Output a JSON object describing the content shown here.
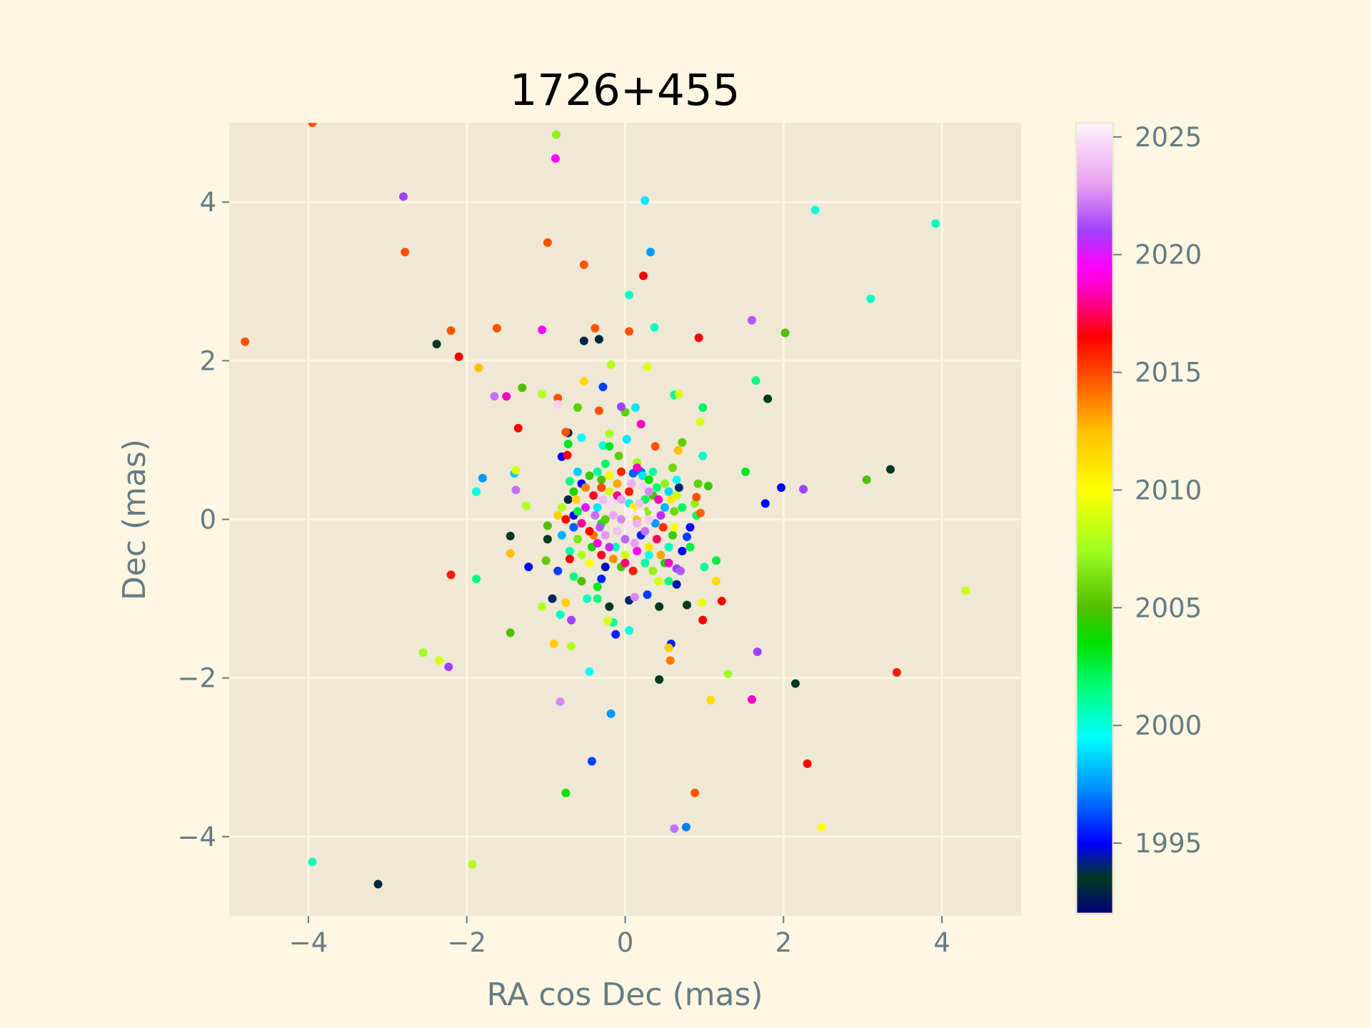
{
  "chart_data": {
    "type": "scatter",
    "title": "1726+455",
    "xlabel": "RA cos Dec (mas)",
    "ylabel": "Dec (mas)",
    "xlim": [
      -5,
      5
    ],
    "ylim": [
      -5,
      5
    ],
    "xticks": [
      -4,
      -2,
      0,
      2,
      4
    ],
    "yticks": [
      -4,
      -2,
      0,
      2,
      4
    ],
    "grid": true,
    "colorbar": {
      "label": "",
      "range": [
        1992.0,
        2025.6
      ],
      "ticks": [
        1995,
        2000,
        2005,
        2010,
        2015,
        2020,
        2025
      ],
      "colormap": "gist_ncar-like",
      "stops": [
        {
          "value": 1992.0,
          "color": "#000080"
        },
        {
          "value": 1993.5,
          "color": "#003a20"
        },
        {
          "value": 1995.0,
          "color": "#0000ff"
        },
        {
          "value": 1997.3,
          "color": "#0090ff"
        },
        {
          "value": 1999.5,
          "color": "#00ffff"
        },
        {
          "value": 2001.5,
          "color": "#00ff80"
        },
        {
          "value": 2003.5,
          "color": "#00e000"
        },
        {
          "value": 2005.0,
          "color": "#50c000"
        },
        {
          "value": 2007.5,
          "color": "#a0ff20"
        },
        {
          "value": 2010.0,
          "color": "#ffff00"
        },
        {
          "value": 2012.5,
          "color": "#ffc000"
        },
        {
          "value": 2014.5,
          "color": "#ff6000"
        },
        {
          "value": 2016.5,
          "color": "#ff0000"
        },
        {
          "value": 2018.5,
          "color": "#ff00c0"
        },
        {
          "value": 2019.5,
          "color": "#ff00ff"
        },
        {
          "value": 2021.0,
          "color": "#a040ff"
        },
        {
          "value": 2023.0,
          "color": "#e8a0f0"
        },
        {
          "value": 2025.6,
          "color": "#fff4fc"
        }
      ]
    },
    "points": [
      [
        -3.95,
        5.0,
        2014.8
      ],
      [
        -0.87,
        4.85,
        2007.0
      ],
      [
        -0.88,
        4.55,
        2019.5
      ],
      [
        -2.8,
        4.07,
        2021.0
      ],
      [
        0.25,
        4.02,
        1999.0
      ],
      [
        2.4,
        3.9,
        2000.0
      ],
      [
        3.92,
        3.73,
        2000.5
      ],
      [
        -2.78,
        3.37,
        2014.8
      ],
      [
        -0.98,
        3.49,
        2014.8
      ],
      [
        -0.52,
        3.21,
        2014.8
      ],
      [
        0.32,
        3.37,
        1997.5
      ],
      [
        0.23,
        3.07,
        2016.5
      ],
      [
        0.05,
        2.83,
        2000.5
      ],
      [
        3.1,
        2.78,
        2000.5
      ],
      [
        -4.8,
        2.24,
        2014.8
      ],
      [
        -2.38,
        2.21,
        1993.5
      ],
      [
        -2.2,
        2.38,
        2014.8
      ],
      [
        -1.62,
        2.41,
        2014.8
      ],
      [
        -1.05,
        2.39,
        2019.5
      ],
      [
        -0.52,
        2.25,
        1993.0
      ],
      [
        -0.33,
        2.27,
        1993.0
      ],
      [
        -0.38,
        2.41,
        2014.8
      ],
      [
        0.05,
        2.37,
        2014.8
      ],
      [
        0.37,
        2.42,
        2000.5
      ],
      [
        0.93,
        2.29,
        2016.5
      ],
      [
        1.6,
        2.51,
        2021.5
      ],
      [
        2.02,
        2.35,
        2005.0
      ],
      [
        -2.1,
        2.05,
        2016.5
      ],
      [
        -1.85,
        1.91,
        2012.5
      ],
      [
        -1.3,
        1.66,
        2005.0
      ],
      [
        -1.05,
        1.58,
        2008.0
      ],
      [
        -1.65,
        1.55,
        2022.0
      ],
      [
        -1.5,
        1.55,
        2018.5
      ],
      [
        -0.85,
        1.53,
        2014.8
      ],
      [
        -0.85,
        1.45,
        2024.5
      ],
      [
        -0.52,
        1.74,
        2011.5
      ],
      [
        -0.28,
        1.67,
        1996.0
      ],
      [
        -0.18,
        1.95,
        2008.0
      ],
      [
        0.28,
        1.92,
        2009.0
      ],
      [
        0.62,
        1.57,
        2001.5
      ],
      [
        0.68,
        1.58,
        2009.0
      ],
      [
        1.65,
        1.75,
        2001.5
      ],
      [
        1.8,
        1.52,
        1993.5
      ],
      [
        -0.6,
        1.41,
        2005.5
      ],
      [
        -0.33,
        1.37,
        2014.8
      ],
      [
        -0.05,
        1.42,
        2021.0
      ],
      [
        0.0,
        1.35,
        2005.5
      ],
      [
        0.13,
        1.41,
        1999.0
      ],
      [
        0.2,
        1.2,
        2018.5
      ],
      [
        0.98,
        1.41,
        2002.0
      ],
      [
        0.95,
        1.23,
        2009.0
      ],
      [
        -1.35,
        1.15,
        2016.5
      ],
      [
        -0.75,
        1.1,
        2014.8
      ],
      [
        -0.72,
        1.09,
        1993.0
      ],
      [
        -0.55,
        1.03,
        1999.5
      ],
      [
        -0.2,
        1.08,
        2007.5
      ],
      [
        0.02,
        1.01,
        1999.0
      ],
      [
        0.72,
        0.97,
        2005.5
      ],
      [
        -0.8,
        0.79,
        1995.0
      ],
      [
        -0.73,
        0.81,
        2016.5
      ],
      [
        -0.72,
        0.95,
        2003.0
      ],
      [
        -0.28,
        0.93,
        2000.0
      ],
      [
        -0.2,
        0.92,
        2003.0
      ],
      [
        0.38,
        0.92,
        2014.8
      ],
      [
        0.67,
        0.87,
        2012.5
      ],
      [
        0.98,
        0.8,
        2000.5
      ],
      [
        1.52,
        0.6,
        2003.0
      ],
      [
        3.35,
        0.63,
        1993.5
      ],
      [
        3.05,
        0.5,
        2005.0
      ],
      [
        1.97,
        0.4,
        1995.0
      ],
      [
        2.25,
        0.38,
        2021.0
      ],
      [
        1.77,
        0.2,
        1995.0
      ],
      [
        -1.8,
        0.52,
        1997.5
      ],
      [
        -1.38,
        0.62,
        2009.0
      ],
      [
        -1.4,
        0.58,
        1998.5
      ],
      [
        -1.38,
        0.37,
        2022.0
      ],
      [
        -1.88,
        0.35,
        2000.0
      ],
      [
        -1.25,
        0.17,
        2008.0
      ],
      [
        -1.45,
        -0.21,
        1993.5
      ],
      [
        -1.45,
        -0.43,
        2012.5
      ],
      [
        -2.2,
        -0.7,
        2016.0
      ],
      [
        -1.88,
        -0.75,
        2001.5
      ],
      [
        -1.22,
        -0.6,
        1995.0
      ],
      [
        -1.05,
        -1.1,
        2008.0
      ],
      [
        -0.92,
        -1.0,
        1994.0
      ],
      [
        -0.82,
        -1.2,
        2000.5
      ],
      [
        -0.68,
        -1.27,
        2021.0
      ],
      [
        -0.9,
        -1.57,
        2012.0
      ],
      [
        -0.68,
        -1.6,
        2008.0
      ],
      [
        -1.45,
        -1.43,
        2005.0
      ],
      [
        -2.55,
        -1.68,
        2007.5
      ],
      [
        -2.35,
        -1.78,
        2009.0
      ],
      [
        -2.23,
        -1.86,
        2021.0
      ],
      [
        -0.45,
        -1.92,
        1999.5
      ],
      [
        -0.82,
        -2.3,
        2022.5
      ],
      [
        -0.18,
        -2.45,
        1997.5
      ],
      [
        -0.42,
        -3.05,
        1996.0
      ],
      [
        -0.75,
        -3.45,
        2003.5
      ],
      [
        -3.95,
        -4.32,
        2000.5
      ],
      [
        -3.12,
        -4.6,
        1993.0
      ],
      [
        -1.93,
        -4.35,
        2008.0
      ],
      [
        0.62,
        -3.9,
        2022.0
      ],
      [
        0.77,
        -3.88,
        1997.0
      ],
      [
        0.88,
        -3.45,
        2014.8
      ],
      [
        2.3,
        -3.08,
        2016.5
      ],
      [
        2.48,
        -3.88,
        2010.0
      ],
      [
        3.43,
        -1.93,
        2016.0
      ],
      [
        4.3,
        -0.9,
        2008.5
      ],
      [
        1.6,
        -2.27,
        2018.5
      ],
      [
        1.67,
        -1.67,
        2021.0
      ],
      [
        1.3,
        -1.95,
        2007.5
      ],
      [
        1.08,
        -2.28,
        2011.5
      ],
      [
        2.15,
        -2.07,
        1993.5
      ],
      [
        0.43,
        -2.02,
        1993.5
      ],
      [
        0.55,
        -1.62,
        2012.0
      ],
      [
        0.57,
        -1.78,
        2014.0
      ],
      [
        0.58,
        -1.57,
        1995.5
      ],
      [
        0.98,
        -1.27,
        2016.5
      ],
      [
        1.22,
        -1.03,
        2016.5
      ],
      [
        0.97,
        -1.05,
        2009.5
      ],
      [
        0.78,
        -1.08,
        1993.5
      ],
      [
        0.43,
        -1.1,
        1993.5
      ],
      [
        0.28,
        -0.95,
        1996.0
      ],
      [
        0.05,
        -1.02,
        1994.0
      ],
      [
        0.12,
        -0.98,
        2022.5
      ],
      [
        0.05,
        -1.4,
        2000.0
      ],
      [
        -0.12,
        -1.45,
        1995.5
      ],
      [
        -0.15,
        -1.3,
        2001.0
      ],
      [
        -0.22,
        -1.28,
        2009.0
      ],
      [
        -0.2,
        -1.1,
        1993.5
      ],
      [
        -0.35,
        -1.0,
        2001.5
      ],
      [
        -0.48,
        -1.0,
        2000.5
      ],
      [
        -0.75,
        -1.05,
        2012.0
      ],
      [
        1.15,
        -0.78,
        2011.5
      ],
      [
        1.15,
        -0.52,
        2002.5
      ],
      [
        1.0,
        -0.6,
        2001.0
      ],
      [
        0.65,
        -0.82,
        1994.5
      ],
      [
        0.65,
        -0.62,
        2021.0
      ],
      [
        0.55,
        -0.78,
        2001.5
      ],
      [
        0.42,
        -0.78,
        2009.0
      ],
      [
        -0.3,
        -0.75,
        1995.5
      ],
      [
        -0.35,
        -0.85,
        2003.0
      ],
      [
        -0.65,
        -0.72,
        2001.5
      ],
      [
        -0.55,
        -0.78,
        2005.0
      ],
      [
        -0.85,
        -0.65,
        1996.0
      ],
      [
        -1.0,
        -0.52,
        2005.5
      ],
      [
        0.7,
        -0.65,
        2021.5
      ],
      [
        -0.98,
        -0.25,
        1993.5
      ],
      [
        -0.98,
        -0.08,
        2005.0
      ],
      [
        -0.75,
        0.0,
        2016.5
      ],
      [
        -0.65,
        0.05,
        1995.0
      ],
      [
        -0.85,
        0.05,
        2012.0
      ],
      [
        0.78,
        -0.22,
        1996.0
      ],
      [
        0.82,
        -0.1,
        1995.0
      ],
      [
        0.9,
        0.05,
        2002.0
      ],
      [
        0.95,
        0.08,
        2014.5
      ],
      [
        0.88,
        0.2,
        2007.0
      ],
      [
        0.9,
        0.28,
        2014.8
      ],
      [
        1.05,
        0.42,
        2004.5
      ],
      [
        0.92,
        0.45,
        2005.5
      ],
      [
        0.68,
        0.4,
        1994.0
      ],
      [
        0.65,
        0.3,
        2008.5
      ],
      [
        0.72,
        0.15,
        2002.0
      ],
      [
        0.62,
        0.1,
        2006.0
      ],
      [
        0.5,
        0.15,
        1998.0
      ],
      [
        0.55,
        -0.35,
        2000.5
      ],
      [
        0.55,
        -0.55,
        2018.5
      ],
      [
        0.72,
        -0.4,
        1995.0
      ],
      [
        0.82,
        -0.35,
        2002.5
      ],
      [
        0.35,
        0.3,
        2005.0
      ],
      [
        0.35,
        0.6,
        2001.0
      ],
      [
        0.6,
        0.65,
        2006.0
      ],
      [
        0.22,
        0.55,
        1999.0
      ],
      [
        0.15,
        0.65,
        2018.5
      ],
      [
        -0.35,
        0.6,
        2001.0
      ],
      [
        -0.45,
        0.55,
        2004.5
      ],
      [
        -0.55,
        0.45,
        1995.0
      ],
      [
        -0.65,
        0.35,
        2004.0
      ],
      [
        -0.72,
        0.25,
        1993.0
      ],
      [
        -0.7,
        0.48,
        2001.5
      ],
      [
        -0.6,
        0.6,
        1998.5
      ],
      [
        -0.25,
        0.7,
        2002.0
      ],
      [
        0.15,
        0.72,
        2007.5
      ],
      [
        -0.08,
        0.8,
        2005.5
      ],
      [
        0.08,
        0.45,
        2023.5
      ],
      [
        0.22,
        0.42,
        2024.5
      ],
      [
        0.3,
        0.35,
        2022.5
      ],
      [
        0.35,
        0.15,
        2025.0
      ],
      [
        0.18,
        0.2,
        2024.0
      ],
      [
        0.05,
        0.1,
        2025.3
      ],
      [
        -0.05,
        0.25,
        2023.0
      ],
      [
        -0.18,
        0.2,
        2024.8
      ],
      [
        -0.28,
        0.25,
        2023.8
      ],
      [
        -0.38,
        0.05,
        2022.0
      ],
      [
        -0.32,
        -0.1,
        2021.5
      ],
      [
        -0.25,
        -0.2,
        2022.8
      ],
      [
        -0.1,
        -0.15,
        2024.0
      ],
      [
        0.05,
        -0.1,
        2025.0
      ],
      [
        0.15,
        -0.05,
        2023.5
      ],
      [
        0.25,
        -0.15,
        2022.0
      ],
      [
        0.3,
        0.0,
        2024.2
      ],
      [
        0.2,
        0.08,
        2025.4
      ],
      [
        -0.05,
        0.0,
        2022.5
      ],
      [
        -0.15,
        0.05,
        2023.2
      ],
      [
        0.0,
        -0.25,
        2021.8
      ],
      [
        0.12,
        -0.3,
        2023.0
      ],
      [
        -0.2,
        -0.35,
        2020.5
      ],
      [
        -0.35,
        -0.3,
        2019.0
      ],
      [
        -0.45,
        -0.15,
        2016.5
      ],
      [
        -0.55,
        -0.05,
        2018.0
      ],
      [
        -0.5,
        0.15,
        2020.0
      ],
      [
        -0.4,
        0.3,
        2017.0
      ],
      [
        -0.3,
        0.4,
        2015.0
      ],
      [
        -0.1,
        0.45,
        2013.0
      ],
      [
        0.05,
        0.35,
        2016.0
      ],
      [
        0.42,
        0.25,
        2018.5
      ],
      [
        0.45,
        0.05,
        2020.5
      ],
      [
        0.48,
        -0.1,
        2015.5
      ],
      [
        0.4,
        -0.25,
        2017.5
      ],
      [
        0.3,
        -0.35,
        2011.0
      ],
      [
        0.15,
        -0.4,
        2019.5
      ],
      [
        0.0,
        -0.45,
        2008.5
      ],
      [
        -0.15,
        -0.5,
        2013.5
      ],
      [
        -0.3,
        -0.45,
        2016.8
      ],
      [
        -0.42,
        -0.35,
        2004.0
      ],
      [
        -0.6,
        -0.25,
        2006.5
      ],
      [
        -0.65,
        -0.1,
        1996.5
      ],
      [
        -0.6,
        0.1,
        2002.5
      ],
      [
        -0.2,
        0.55,
        2009.5
      ],
      [
        0.1,
        0.58,
        1996.5
      ],
      [
        0.3,
        0.5,
        2003.5
      ],
      [
        0.5,
        0.45,
        2007.0
      ],
      [
        0.58,
        0.25,
        2011.0
      ],
      [
        0.6,
        -0.2,
        2004.5
      ],
      [
        0.45,
        -0.45,
        2013.0
      ],
      [
        0.25,
        -0.55,
        2001.0
      ],
      [
        -0.05,
        -0.6,
        2005.0
      ],
      [
        -0.25,
        -0.6,
        1994.5
      ],
      [
        -0.45,
        -0.55,
        2010.0
      ],
      [
        -0.7,
        -0.4,
        2001.0
      ],
      [
        -0.8,
        -0.2,
        1998.0
      ],
      [
        -0.8,
        0.15,
        2008.0
      ],
      [
        -0.7,
        -0.5,
        2016.5
      ],
      [
        0.65,
        0.5,
        1999.5
      ],
      [
        0.35,
        -0.65,
        2007.0
      ],
      [
        0.1,
        -0.65,
        2016.0
      ],
      [
        -0.35,
        0.15,
        1999.0
      ],
      [
        0.25,
        0.25,
        2002.0
      ],
      [
        -0.12,
        -0.35,
        2000.5
      ],
      [
        0.38,
        -0.05,
        1997.5
      ],
      [
        -0.25,
        0.0,
        2005.5
      ],
      [
        0.1,
        0.15,
        2010.5
      ],
      [
        -0.4,
        -0.2,
        2014.0
      ],
      [
        0.2,
        -0.2,
        1995.5
      ],
      [
        -0.1,
        0.3,
        2018.0
      ],
      [
        0.28,
        0.1,
        2006.8
      ],
      [
        -0.3,
        -0.05,
        2003.0
      ],
      [
        0.05,
        0.2,
        2000.0
      ],
      [
        0.15,
        0.0,
        2012.5
      ],
      [
        -0.2,
        0.35,
        2008.8
      ],
      [
        0.4,
        0.4,
        2001.8
      ],
      [
        -0.5,
        0.4,
        2013.8
      ],
      [
        0.55,
        0.35,
        1998.8
      ],
      [
        -0.55,
        -0.45,
        2007.8
      ],
      [
        0.5,
        -0.55,
        2003.8
      ],
      [
        -0.05,
        0.6,
        2015.8
      ],
      [
        0.2,
        0.6,
        1996.8
      ],
      [
        -0.62,
        0.25,
        2011.8
      ],
      [
        0.62,
        -0.1,
        2009.8
      ],
      [
        0.0,
        -0.55,
        2017.8
      ],
      [
        -0.3,
        0.5,
        2004.8
      ],
      [
        0.3,
        -0.45,
        1999.8
      ]
    ]
  }
}
